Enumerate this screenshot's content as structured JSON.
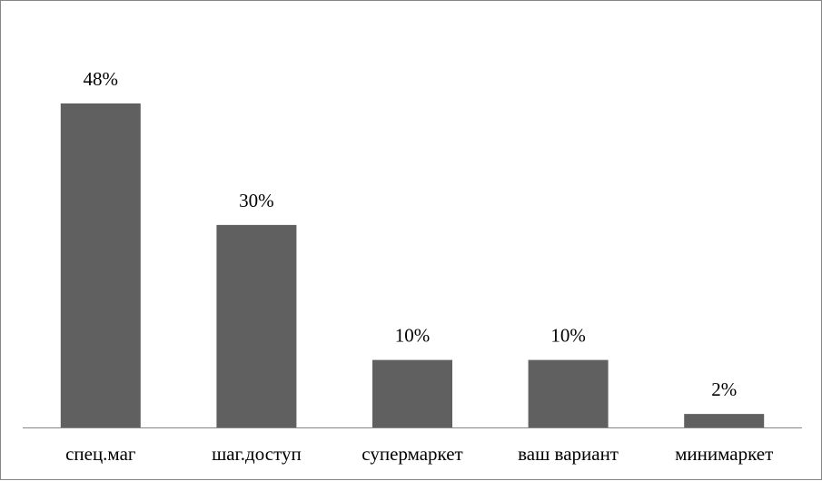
{
  "chart_data": {
    "type": "bar",
    "categories": [
      "спец.маг",
      "шаг.доступ",
      "супермаркет",
      "ваш вариант",
      "минимаркет"
    ],
    "values": [
      48,
      30,
      10,
      10,
      2
    ],
    "data_labels": [
      "48%",
      "30%",
      "10%",
      "10%",
      "2%"
    ],
    "title": "",
    "xlabel": "",
    "ylabel": "",
    "ylim": [
      0,
      50
    ],
    "grid": false,
    "legend": "none",
    "bar_color": "#606060",
    "axis_color": "#868686"
  }
}
